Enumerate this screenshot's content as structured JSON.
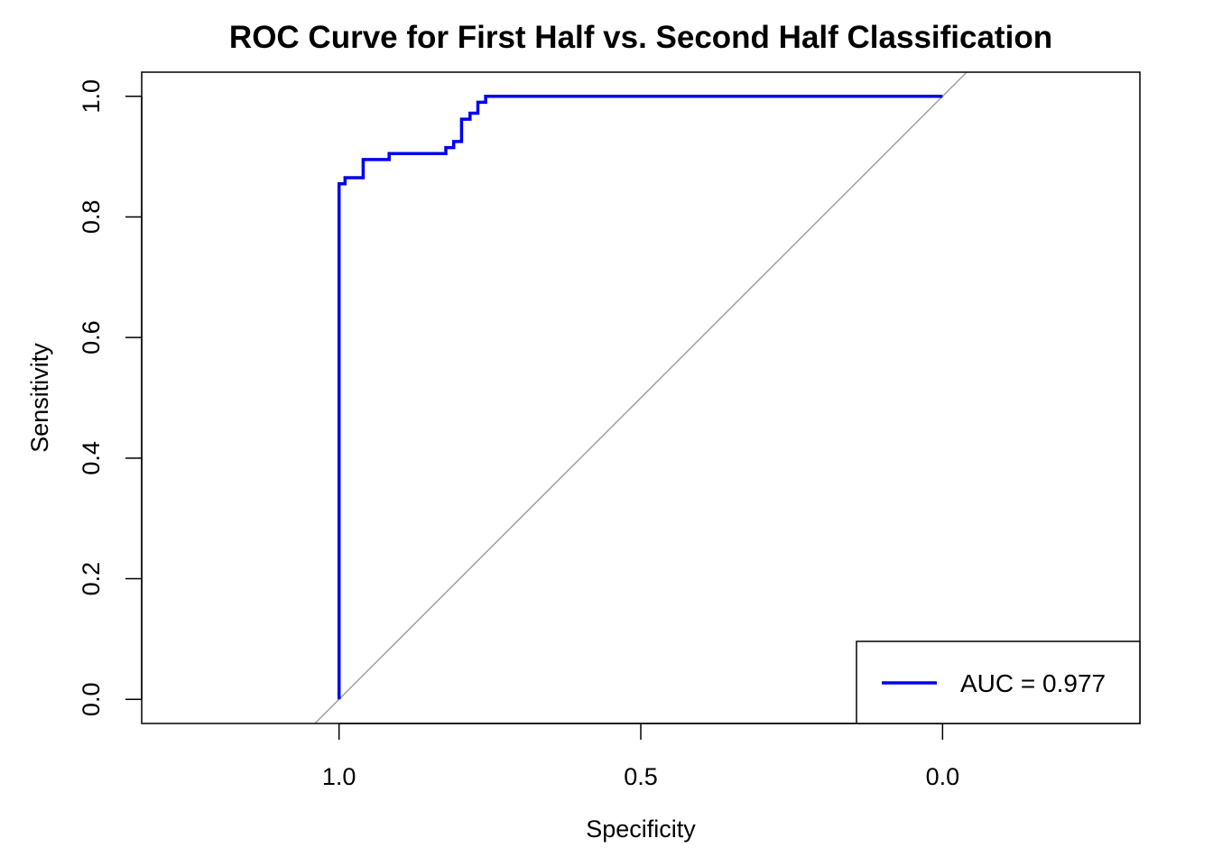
{
  "chart_data": {
    "type": "line",
    "title": "ROC Curve for First Half vs. Second Half Classification",
    "xlabel": "Specificity",
    "ylabel": "Sensitivity",
    "x_reversed": true,
    "xlim": [
      1.327,
      -0.327
    ],
    "ylim": [
      -0.04,
      1.04
    ],
    "x_ticks": [
      {
        "value": 1.0,
        "label": "1.0"
      },
      {
        "value": 0.5,
        "label": "0.5"
      },
      {
        "value": 0.0,
        "label": "0.0"
      }
    ],
    "y_ticks": [
      {
        "value": 0.0,
        "label": "0.0"
      },
      {
        "value": 0.2,
        "label": "0.2"
      },
      {
        "value": 0.4,
        "label": "0.4"
      },
      {
        "value": 0.6,
        "label": "0.6"
      },
      {
        "value": 0.8,
        "label": "0.8"
      },
      {
        "value": 1.0,
        "label": "1.0"
      }
    ],
    "grid": false,
    "legend_position": "bottom-right",
    "diagonal": {
      "color": "#a0a0a0"
    },
    "series": [
      {
        "color": "#0000ee",
        "specificity": [
          1.0,
          1.0,
          0.99,
          0.99,
          0.96,
          0.96,
          0.917,
          0.917,
          0.823,
          0.823,
          0.81,
          0.81,
          0.797,
          0.797,
          0.783,
          0.783,
          0.77,
          0.77,
          0.757,
          0.757,
          0.0
        ],
        "sensitivity": [
          0.0,
          0.855,
          0.855,
          0.865,
          0.865,
          0.895,
          0.895,
          0.905,
          0.905,
          0.915,
          0.915,
          0.925,
          0.925,
          0.962,
          0.962,
          0.972,
          0.972,
          0.99,
          0.99,
          1.0,
          1.0
        ]
      }
    ],
    "legend": [
      {
        "label": "AUC = 0.977",
        "color": "#0000ee"
      }
    ]
  }
}
